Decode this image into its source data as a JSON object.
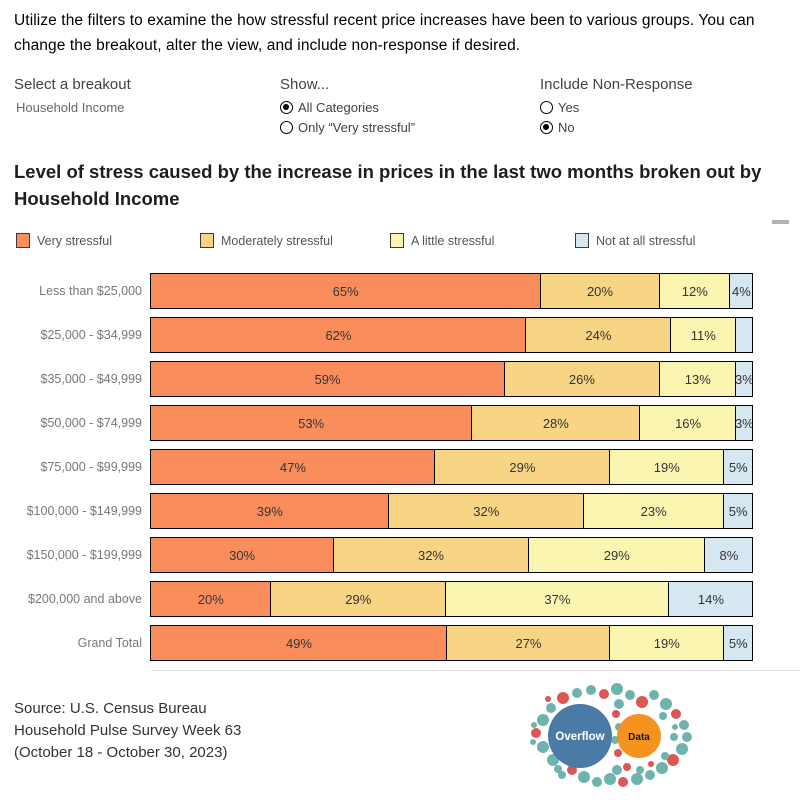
{
  "instructions": "Utilize the filters to examine the how stressful recent price increases have been to various groups. You can change the breakout, alter the view, and include non-response if desired.",
  "filters": {
    "breakout": {
      "label": "Select a breakout",
      "value": "Household Income"
    },
    "show": {
      "label": "Show...",
      "options": [
        {
          "label": "All Categories",
          "selected": true
        },
        {
          "label": "Only “Very stressful”",
          "selected": false
        }
      ]
    },
    "non_response": {
      "label": "Include Non-Response",
      "options": [
        {
          "label": "Yes",
          "selected": false
        },
        {
          "label": "No",
          "selected": true
        }
      ]
    }
  },
  "chart_data": {
    "type": "bar",
    "stacked": true,
    "orientation": "horizontal",
    "title": "Level of stress caused by the increase in prices in the last two months broken out by Household Income",
    "xlim": [
      0,
      100
    ],
    "grid": false,
    "legend_position": "top",
    "categories": [
      "Less than $25,000",
      "$25,000 - $34,999",
      "$35,000 - $49,999",
      "$50,000 - $74,999",
      "$75,000 - $99,999",
      "$100,000 - $149,999",
      "$150,000 - $199,999",
      "$200,000 and above",
      "Grand Total"
    ],
    "series": [
      {
        "name": "Very stressful",
        "color": "#F98E5C",
        "values": [
          65,
          62,
          59,
          53,
          47,
          39,
          30,
          20,
          49
        ],
        "labels": [
          "65%",
          "62%",
          "59%",
          "53%",
          "47%",
          "39%",
          "30%",
          "20%",
          "49%"
        ]
      },
      {
        "name": "Moderately stressful",
        "color": "#F8D584",
        "values": [
          20,
          24,
          26,
          28,
          29,
          32,
          32,
          29,
          27
        ],
        "labels": [
          "20%",
          "24%",
          "26%",
          "28%",
          "29%",
          "32%",
          "32%",
          "29%",
          "27%"
        ]
      },
      {
        "name": "A little stressful",
        "color": "#FAF5B1",
        "values": [
          12,
          11,
          13,
          16,
          19,
          23,
          29,
          37,
          19
        ],
        "labels": [
          "12%",
          "11%",
          "13%",
          "16%",
          "19%",
          "23%",
          "29%",
          "37%",
          "19%"
        ]
      },
      {
        "name": "Not at all stressful",
        "color": "#D6E7F2",
        "values": [
          4,
          3,
          3,
          3,
          5,
          5,
          8,
          14,
          5
        ],
        "labels": [
          "4%",
          "",
          "3%",
          "3%",
          "5%",
          "5%",
          "8%",
          "14%",
          "5%"
        ]
      }
    ]
  },
  "source": {
    "line1": "Source: U.S. Census Bureau",
    "line2": "Household Pulse Survey Week 63",
    "line3": "(October 18 - October 30, 2023)"
  },
  "logo": {
    "primary_label": "Overflow",
    "secondary_label": "Data",
    "primary_color": "#4A7BA7",
    "secondary_color": "#F6921E",
    "dot_teal": "#6FB3AE",
    "dot_red": "#DC5753"
  }
}
